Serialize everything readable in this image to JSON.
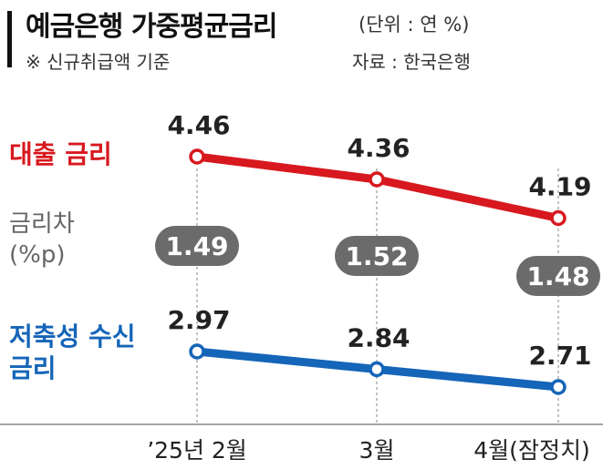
{
  "header": {
    "title": "예금은행 가중평균금리",
    "unit": "(단위 : 연 %)",
    "note": "※ 신규취급액 기준",
    "source": "자료 : 한국은행"
  },
  "labels": {
    "loan": "대출 금리",
    "spread_line1": "금리차",
    "spread_line2": "(%p)",
    "deposit_line1": "저축성 수신",
    "deposit_line2": "금리"
  },
  "colors": {
    "loan": "#d7191f",
    "deposit": "#1565b8",
    "spread_badge": "#6b6b6b"
  },
  "chart_data": {
    "type": "line",
    "categories": [
      "’25년 2월",
      "3월",
      "4월(잠정치)"
    ],
    "series": [
      {
        "name": "대출 금리",
        "values": [
          4.46,
          4.36,
          4.19
        ],
        "labels": [
          "4.46",
          "4.36",
          "4.19"
        ]
      },
      {
        "name": "저축성 수신 금리",
        "values": [
          2.97,
          2.84,
          2.71
        ],
        "labels": [
          "2.97",
          "2.84",
          "2.71"
        ]
      }
    ],
    "spread": {
      "name": "금리차",
      "values": [
        1.49,
        1.52,
        1.48
      ],
      "labels": [
        "1.49",
        "1.52",
        "1.48"
      ]
    },
    "ylim": [
      2.5,
      4.6
    ]
  }
}
